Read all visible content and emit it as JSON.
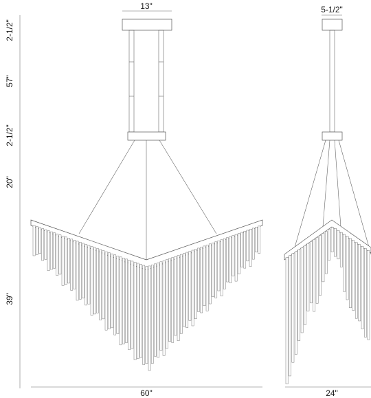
{
  "dimensions": {
    "top_width_front": "13\"",
    "top_width_side": "5-1/2\"",
    "canopy_height": "2-1/2\"",
    "stem_length": "57\"",
    "mount_height": "2-1/2\"",
    "cable_height": "20\"",
    "fixture_height": "39\"",
    "width_front": "60\"",
    "width_side": "24\""
  }
}
